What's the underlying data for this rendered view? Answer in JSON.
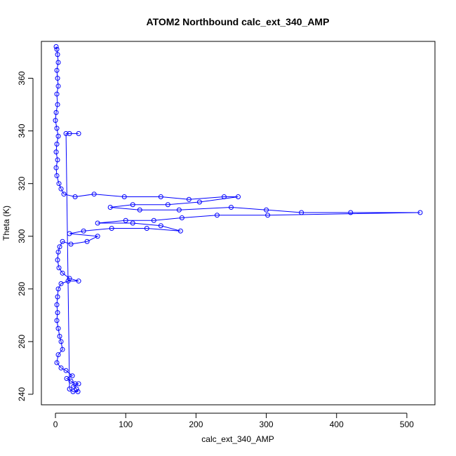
{
  "chart_data": {
    "type": "scatter",
    "title": "ATOM2 Northbound calc_ext_340_AMP",
    "xlabel": "calc_ext_340_AMP",
    "ylabel": "Theta (K)",
    "xlim": [
      -20,
      540
    ],
    "ylim": [
      236,
      374
    ],
    "x_ticks": [
      0,
      100,
      200,
      300,
      400,
      500
    ],
    "y_ticks": [
      240,
      260,
      280,
      300,
      320,
      340,
      360
    ],
    "grid": false,
    "legend": "none",
    "color": "#0000ff",
    "marker": "open-circle",
    "connected": true,
    "series": [
      {
        "values_xy": [
          [
            1,
            372
          ],
          [
            2,
            371
          ],
          [
            3,
            369
          ],
          [
            4,
            366
          ],
          [
            2,
            363
          ],
          [
            3,
            360
          ],
          [
            4,
            357
          ],
          [
            2,
            354
          ],
          [
            3,
            350
          ],
          [
            1,
            347
          ],
          [
            0,
            344
          ],
          [
            2,
            341
          ],
          [
            4,
            338
          ],
          [
            2,
            335
          ],
          [
            1,
            332
          ],
          [
            3,
            329
          ],
          [
            1,
            326
          ],
          [
            2,
            323
          ],
          [
            5,
            320
          ],
          [
            8,
            318
          ],
          [
            12,
            316
          ],
          [
            28,
            315
          ],
          [
            55,
            316
          ],
          [
            98,
            315
          ],
          [
            150,
            315
          ],
          [
            190,
            314
          ],
          [
            240,
            315
          ],
          [
            260,
            315
          ],
          [
            205,
            313
          ],
          [
            160,
            312
          ],
          [
            110,
            312
          ],
          [
            78,
            311
          ],
          [
            120,
            310
          ],
          [
            176,
            310
          ],
          [
            250,
            311
          ],
          [
            300,
            310
          ],
          [
            350,
            309
          ],
          [
            420,
            309
          ],
          [
            519,
            309
          ],
          [
            302,
            308
          ],
          [
            230,
            308
          ],
          [
            180,
            307
          ],
          [
            140,
            306
          ],
          [
            100,
            306
          ],
          [
            60,
            305
          ],
          [
            110,
            305
          ],
          [
            150,
            304
          ],
          [
            178,
            302
          ],
          [
            130,
            303
          ],
          [
            80,
            303
          ],
          [
            40,
            302
          ],
          [
            20,
            301
          ],
          [
            60,
            300
          ],
          [
            45,
            298
          ],
          [
            22,
            297
          ],
          [
            10,
            298
          ],
          [
            6,
            296
          ],
          [
            4,
            294
          ],
          [
            3,
            291
          ],
          [
            5,
            288
          ],
          [
            10,
            286
          ],
          [
            20,
            284
          ],
          [
            33,
            283
          ],
          [
            18,
            283
          ],
          [
            8,
            282
          ],
          [
            4,
            280
          ],
          [
            3,
            277
          ],
          [
            2,
            274
          ],
          [
            3,
            271
          ],
          [
            2,
            268
          ],
          [
            4,
            265
          ],
          [
            6,
            262
          ],
          [
            8,
            260
          ],
          [
            10,
            257
          ],
          [
            4,
            255
          ],
          [
            2,
            252
          ],
          [
            8,
            250
          ],
          [
            15,
            249
          ],
          [
            24,
            247
          ],
          [
            16,
            246
          ],
          [
            22,
            245
          ],
          [
            28,
            244
          ],
          [
            33,
            244
          ],
          [
            26,
            243
          ],
          [
            30,
            242
          ],
          [
            32,
            241
          ],
          [
            25,
            241
          ],
          [
            20,
            242
          ],
          [
            15,
            339
          ],
          [
            20,
            339
          ],
          [
            33,
            339
          ]
        ]
      }
    ]
  }
}
